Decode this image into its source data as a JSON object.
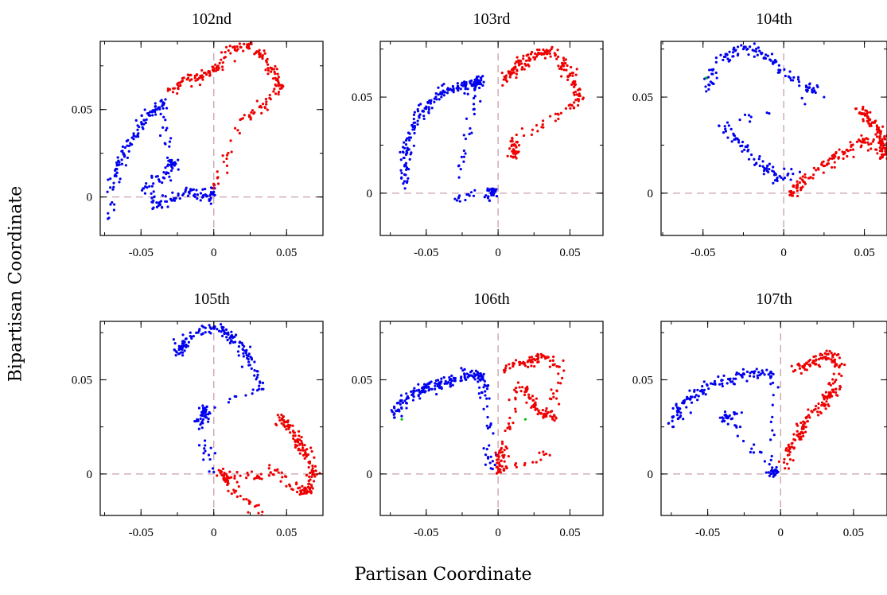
{
  "figure": {
    "ylabel": "Bipartisan Coordinate",
    "xlabel": "Partisan Coordinate"
  },
  "colors": {
    "democrat": "#0000ee",
    "republican": "#ee0000",
    "independent": "#00bb00",
    "zero_line": "#c8a0a8"
  },
  "chart_data": [
    {
      "type": "scatter",
      "title": "102nd",
      "xlim": [
        -0.078,
        0.075
      ],
      "ylim": [
        -0.022,
        0.089
      ],
      "xticks": [
        -0.05,
        0,
        0.05
      ],
      "xtick_labels": [
        "-0.05",
        "0",
        "0.05"
      ],
      "yticks": [
        0,
        0.05
      ],
      "ytick_labels": [
        "0",
        "0.05"
      ],
      "zero_lines": true,
      "series": [
        {
          "party": "D",
          "count": 260,
          "points": [
            [
              -0.072,
              -0.012
            ],
            [
              -0.068,
              0.012
            ],
            [
              -0.062,
              0.025
            ],
            [
              -0.055,
              0.035
            ],
            [
              -0.048,
              0.044
            ],
            [
              -0.04,
              0.05
            ],
            [
              -0.035,
              0.053
            ],
            [
              -0.03,
              0.021
            ],
            [
              -0.027,
              0.018
            ],
            [
              -0.047,
              0.006
            ],
            [
              -0.038,
              -0.005
            ],
            [
              -0.015,
              0.004
            ],
            [
              -0.003,
              -0.002
            ],
            [
              -0.001,
              0.005
            ]
          ]
        },
        {
          "party": "R",
          "count": 210,
          "points": [
            [
              -0.028,
              0.06
            ],
            [
              -0.022,
              0.066
            ],
            [
              -0.01,
              0.068
            ],
            [
              -0.005,
              0.07
            ],
            [
              0.0,
              0.072
            ],
            [
              0.008,
              0.08
            ],
            [
              0.016,
              0.086
            ],
            [
              0.024,
              0.087
            ],
            [
              0.032,
              0.082
            ],
            [
              0.04,
              0.073
            ],
            [
              0.046,
              0.064
            ],
            [
              0.036,
              0.053
            ],
            [
              0.02,
              0.045
            ],
            [
              0.0,
              0.005
            ]
          ]
        }
      ]
    },
    {
      "type": "scatter",
      "title": "103rd",
      "xlim": [
        -0.082,
        0.073
      ],
      "ylim": [
        -0.022,
        0.079
      ],
      "xticks": [
        -0.05,
        0,
        0.05
      ],
      "xtick_labels": [
        "-0.05",
        "0",
        "0.05"
      ],
      "yticks": [
        0,
        0.05
      ],
      "ytick_labels": [
        "0",
        "0.05"
      ],
      "zero_lines": true,
      "series": [
        {
          "party": "D",
          "count": 260,
          "points": [
            [
              -0.066,
              0.005
            ],
            [
              -0.064,
              0.02
            ],
            [
              -0.058,
              0.035
            ],
            [
              -0.05,
              0.045
            ],
            [
              -0.04,
              0.052
            ],
            [
              -0.028,
              0.055
            ],
            [
              -0.018,
              0.056
            ],
            [
              -0.012,
              0.06
            ],
            [
              -0.03,
              -0.003
            ],
            [
              -0.005,
              0.0
            ],
            [
              -0.002,
              0.001
            ]
          ]
        },
        {
          "party": "R",
          "count": 220,
          "points": [
            [
              0.005,
              0.06
            ],
            [
              0.015,
              0.067
            ],
            [
              0.028,
              0.073
            ],
            [
              0.04,
              0.072
            ],
            [
              0.05,
              0.062
            ],
            [
              0.056,
              0.048
            ],
            [
              0.01,
              0.027
            ],
            [
              0.012,
              0.019
            ]
          ]
        }
      ]
    },
    {
      "type": "scatter",
      "title": "104th",
      "xlim": [
        -0.076,
        0.064
      ],
      "ylim": [
        -0.022,
        0.079
      ],
      "xticks": [
        -0.05,
        0,
        0.05
      ],
      "xtick_labels": [
        "-0.05",
        "0",
        "0.05"
      ],
      "yticks": [
        0,
        0.05
      ],
      "ytick_labels": [
        "0",
        "0.05"
      ],
      "zero_lines": true,
      "series": [
        {
          "party": "D",
          "count": 200,
          "points": [
            [
              -0.048,
              0.053
            ],
            [
              -0.044,
              0.062
            ],
            [
              -0.035,
              0.072
            ],
            [
              -0.025,
              0.075
            ],
            [
              -0.015,
              0.074
            ],
            [
              -0.006,
              0.068
            ],
            [
              0.004,
              0.06
            ],
            [
              0.015,
              0.055
            ],
            [
              0.025,
              0.05
            ],
            [
              -0.04,
              0.035
            ],
            [
              -0.03,
              0.028
            ],
            [
              -0.02,
              0.02
            ],
            [
              -0.012,
              0.013
            ],
            [
              -0.004,
              0.008
            ],
            [
              0.01,
              0.011
            ]
          ]
        },
        {
          "party": "R",
          "count": 230,
          "points": [
            [
              0.045,
              0.044
            ],
            [
              0.052,
              0.04
            ],
            [
              0.058,
              0.034
            ],
            [
              0.062,
              0.025
            ],
            [
              0.064,
              0.018
            ],
            [
              0.05,
              0.028
            ],
            [
              0.04,
              0.022
            ],
            [
              0.03,
              0.018
            ],
            [
              0.02,
              0.012
            ],
            [
              0.008,
              0.004
            ],
            [
              0.005,
              -0.001
            ]
          ]
        },
        {
          "party": "I",
          "count": 1,
          "points": [
            [
              -0.048,
              0.06
            ]
          ]
        }
      ]
    },
    {
      "type": "scatter",
      "title": "105th",
      "xlim": [
        -0.078,
        0.075
      ],
      "ylim": [
        -0.022,
        0.081
      ],
      "xticks": [
        -0.05,
        0,
        0.05
      ],
      "xtick_labels": [
        "-0.05",
        "0",
        "0.05"
      ],
      "yticks": [
        0,
        0.05
      ],
      "ytick_labels": [
        "0",
        "0.05"
      ],
      "zero_lines": true,
      "series": [
        {
          "party": "D",
          "count": 210,
          "points": [
            [
              -0.026,
              0.063
            ],
            [
              -0.02,
              0.07
            ],
            [
              -0.01,
              0.076
            ],
            [
              0.0,
              0.078
            ],
            [
              0.01,
              0.074
            ],
            [
              0.02,
              0.066
            ],
            [
              0.028,
              0.055
            ],
            [
              0.033,
              0.045
            ],
            [
              -0.01,
              0.035
            ],
            [
              -0.005,
              0.03
            ],
            [
              -0.012,
              0.028
            ],
            [
              0.0,
              0.001
            ]
          ]
        },
        {
          "party": "R",
          "count": 230,
          "points": [
            [
              0.045,
              0.03
            ],
            [
              0.052,
              0.025
            ],
            [
              0.058,
              0.018
            ],
            [
              0.064,
              0.01
            ],
            [
              0.068,
              0.003
            ],
            [
              0.066,
              -0.008
            ],
            [
              0.06,
              -0.01
            ],
            [
              0.038,
              0.003
            ],
            [
              0.03,
              -0.001
            ],
            [
              0.005,
              0.001
            ],
            [
              0.01,
              -0.005
            ],
            [
              0.033,
              -0.022
            ]
          ]
        }
      ]
    },
    {
      "type": "scatter",
      "title": "106th",
      "xlim": [
        -0.082,
        0.073
      ],
      "ylim": [
        -0.022,
        0.081
      ],
      "xticks": [
        -0.05,
        0,
        0.05
      ],
      "xtick_labels": [
        "-0.05",
        "0",
        "0.05"
      ],
      "yticks": [
        0,
        0.05
      ],
      "ytick_labels": [
        "0",
        "0.05"
      ],
      "zero_lines": true,
      "series": [
        {
          "party": "D",
          "count": 210,
          "points": [
            [
              -0.072,
              0.03
            ],
            [
              -0.068,
              0.037
            ],
            [
              -0.06,
              0.042
            ],
            [
              -0.05,
              0.046
            ],
            [
              -0.04,
              0.048
            ],
            [
              -0.03,
              0.05
            ],
            [
              -0.02,
              0.052
            ],
            [
              -0.012,
              0.053
            ],
            [
              -0.008,
              0.04
            ],
            [
              -0.005,
              0.003
            ]
          ]
        },
        {
          "party": "R",
          "count": 230,
          "points": [
            [
              0.005,
              0.055
            ],
            [
              0.015,
              0.058
            ],
            [
              0.025,
              0.061
            ],
            [
              0.035,
              0.062
            ],
            [
              0.042,
              0.057
            ],
            [
              0.038,
              0.03
            ],
            [
              0.03,
              0.032
            ],
            [
              0.022,
              0.04
            ],
            [
              0.015,
              0.046
            ],
            [
              0.002,
              0.013
            ],
            [
              0.002,
              0.007
            ],
            [
              0.0,
              0.001
            ],
            [
              0.036,
              0.01
            ]
          ]
        },
        {
          "party": "I",
          "count": 2,
          "points": [
            [
              0.019,
              0.029
            ],
            [
              -0.067,
              0.029
            ]
          ]
        }
      ]
    },
    {
      "type": "scatter",
      "title": "107th",
      "xlim": [
        -0.082,
        0.073
      ],
      "ylim": [
        -0.022,
        0.081
      ],
      "xticks": [
        -0.05,
        0,
        0.05
      ],
      "xtick_labels": [
        "-0.05",
        "0",
        "0.05"
      ],
      "yticks": [
        0,
        0.05
      ],
      "ytick_labels": [
        "0",
        "0.05"
      ],
      "zero_lines": true,
      "series": [
        {
          "party": "D",
          "count": 200,
          "points": [
            [
              -0.074,
              0.025
            ],
            [
              -0.07,
              0.035
            ],
            [
              -0.063,
              0.04
            ],
            [
              -0.055,
              0.044
            ],
            [
              -0.045,
              0.048
            ],
            [
              -0.035,
              0.05
            ],
            [
              -0.025,
              0.053
            ],
            [
              -0.015,
              0.054
            ],
            [
              -0.005,
              0.053
            ],
            [
              -0.006,
              0.002
            ],
            [
              -0.003,
              0.001
            ],
            [
              -0.04,
              0.03
            ],
            [
              -0.03,
              0.032
            ]
          ]
        },
        {
          "party": "R",
          "count": 210,
          "points": [
            [
              0.01,
              0.055
            ],
            [
              0.02,
              0.058
            ],
            [
              0.03,
              0.062
            ],
            [
              0.036,
              0.063
            ],
            [
              0.04,
              0.057
            ],
            [
              0.038,
              0.045
            ],
            [
              0.032,
              0.04
            ],
            [
              0.026,
              0.035
            ],
            [
              0.02,
              0.03
            ],
            [
              0.015,
              0.025
            ],
            [
              0.01,
              0.018
            ],
            [
              0.005,
              0.01
            ],
            [
              0.003,
              0.003
            ]
          ]
        }
      ]
    }
  ]
}
